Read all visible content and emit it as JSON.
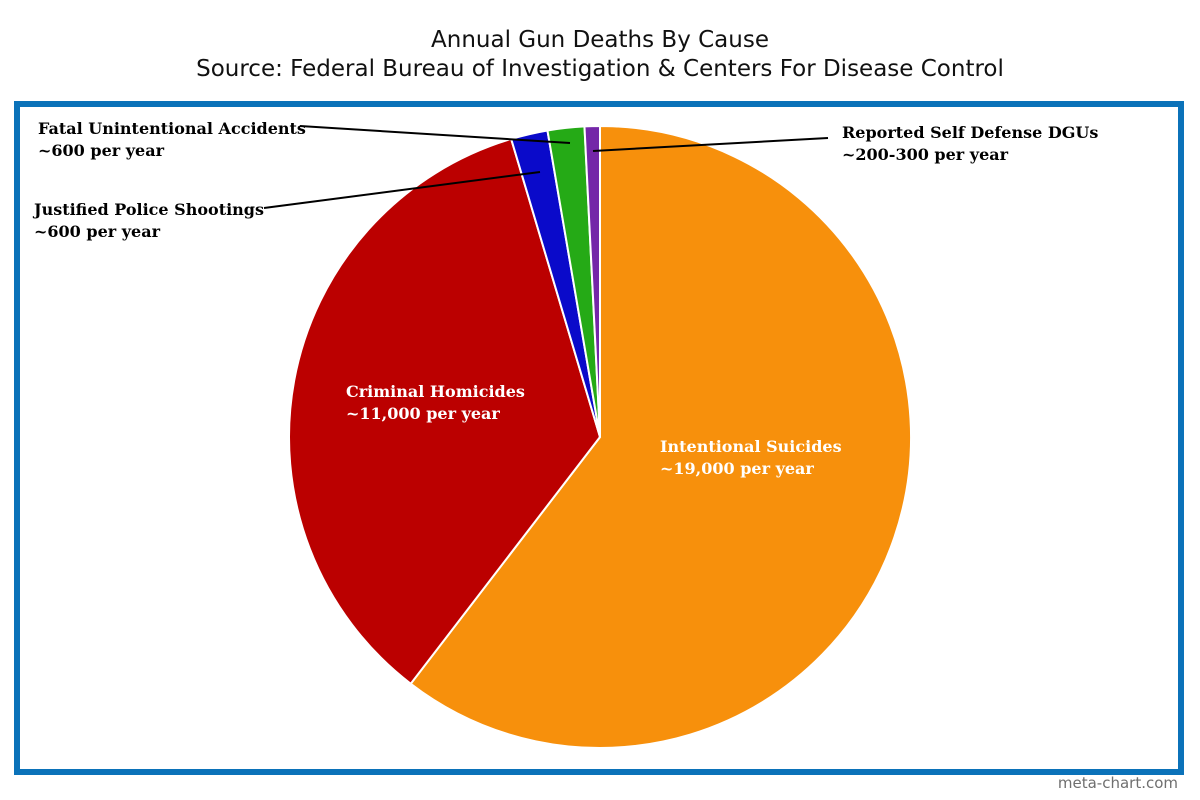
{
  "chart_data": {
    "type": "pie",
    "title": "Annual Gun Deaths By Cause",
    "subtitle": "Source: Federal Bureau of Investigation & Centers For Disease Control",
    "start_angle_deg": 0,
    "direction": "clockwise",
    "slices": [
      {
        "label": "Intentional Suicides",
        "value_label": "~19,000 per year",
        "value": 19000,
        "color": "#f7900c"
      },
      {
        "label": "Criminal Homicides",
        "value_label": "~11,000 per year",
        "value": 11000,
        "color": "#bb0000"
      },
      {
        "label": "Justified Police Shootings",
        "value_label": "~600 per year",
        "value": 600,
        "color": "#0a0aca"
      },
      {
        "label": "Fatal Unintentional Accidents",
        "value_label": "~600 per year",
        "value": 600,
        "color": "#25aa16"
      },
      {
        "label": "Reported Self Defense DGUs",
        "value_label": "~200-300 per year",
        "value": 250,
        "color": "#7427a8"
      }
    ]
  },
  "frame_color": "#0b72b9",
  "watermark": "meta-chart.com"
}
